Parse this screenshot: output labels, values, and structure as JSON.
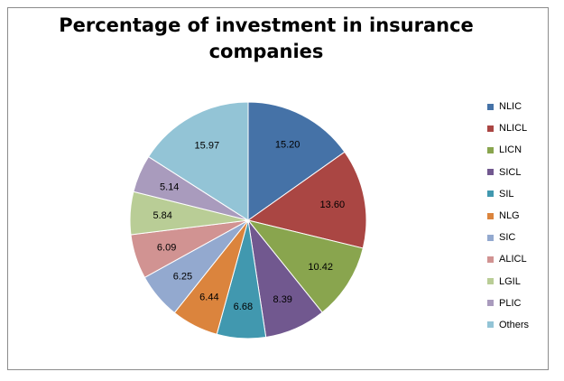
{
  "chart_data": {
    "type": "pie",
    "title": "Percentage of investment in insurance companies",
    "slices": [
      {
        "label": "NLIC",
        "value": 15.2,
        "display": "15.20",
        "color": "#4572a7"
      },
      {
        "label": "NLICL",
        "value": 13.6,
        "display": "13.60",
        "color": "#aa4643"
      },
      {
        "label": "LICN",
        "value": 10.42,
        "display": "10.42",
        "color": "#89a54e"
      },
      {
        "label": "SICL",
        "value": 8.39,
        "display": "8.39",
        "color": "#71588f"
      },
      {
        "label": "SIL",
        "value": 6.68,
        "display": "6.68",
        "color": "#4198af"
      },
      {
        "label": "NLG",
        "value": 6.44,
        "display": "6.44",
        "color": "#db843d"
      },
      {
        "label": "SIC",
        "value": 6.25,
        "display": "6.25",
        "color": "#93a9cf"
      },
      {
        "label": "ALICL",
        "value": 6.09,
        "display": "6.09",
        "color": "#d19392"
      },
      {
        "label": "LGIL",
        "value": 5.84,
        "display": "5.84",
        "color": "#b9cd96"
      },
      {
        "label": "PLIC",
        "value": 5.14,
        "display": "5.14",
        "color": "#a99bbd"
      },
      {
        "label": "Others",
        "value": 15.97,
        "display": "15.97",
        "color": "#93c4d6"
      }
    ],
    "legend_position": "right"
  }
}
